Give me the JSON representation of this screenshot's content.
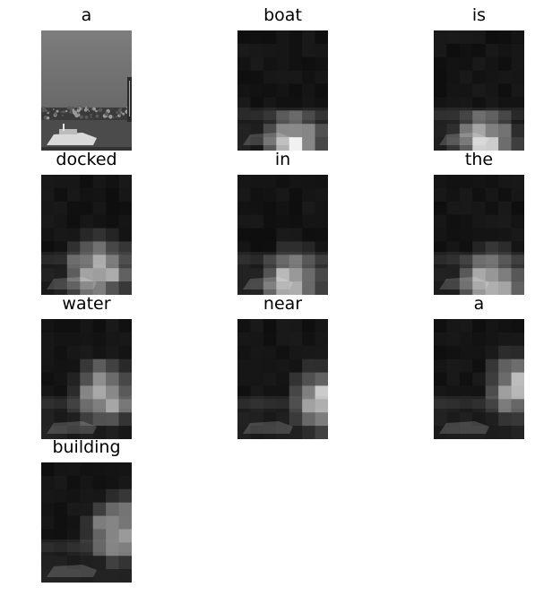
{
  "figure": {
    "words": [
      "a",
      "boat",
      "is",
      "docked",
      "in",
      "the",
      "water",
      "near",
      "a",
      "building"
    ]
  }
}
